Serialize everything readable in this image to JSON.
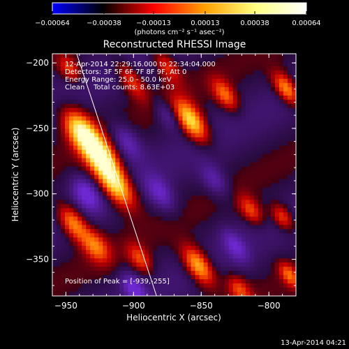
{
  "chart_data": {
    "type": "heatmap",
    "title": "Reconstructed RHESSI Image",
    "xlabel": "Heliocentric X (arcsec)",
    "ylabel": "Heliocentric Y (arcsec)",
    "xlim": [
      -960,
      -780
    ],
    "ylim": [
      -378,
      -193
    ],
    "x_ticks": [
      -950,
      -900,
      -850,
      -800
    ],
    "y_ticks": [
      -350,
      -300,
      -250,
      -200
    ],
    "colorbar": {
      "vmin": -0.00064,
      "vmax": 0.00064,
      "tick_values": [
        -0.00064,
        -0.00038,
        -0.00013,
        0.00013,
        0.00038,
        0.00064
      ],
      "tick_labels": [
        "−0.00064",
        "−0.00038",
        "−0.00013",
        "0.00013",
        "0.00038",
        "0.00064"
      ],
      "unit_label": "(photons cm⁻² s⁻¹ asec⁻²)",
      "colors": [
        "#0000ff",
        "#000000",
        "#ff0000",
        "#ffa000",
        "#ffff80",
        "#ffffff"
      ]
    },
    "annotations": [
      "12-Apr-2014 22:29:16.000 to 22:34:04.000",
      "Detectors: 3F 5F 6F 7F 8F 9F, Att 0",
      "Energy Range: 25.0 - 50.0 keV",
      "Clean    Total counts: 8.63E+03",
      "Position of Peak = [-939,-255]"
    ],
    "peak": {
      "x": -939,
      "y": -255
    },
    "limb_line": [
      [
        -942,
        -193
      ],
      [
        -883,
        -378
      ]
    ],
    "blobs": [
      {
        "x": -938,
        "y": -253,
        "amp": 1.0,
        "sa": 14,
        "sb": 7
      },
      {
        "x": -913,
        "y": -293,
        "amp": 1.0,
        "sa": 14,
        "sb": 7
      },
      {
        "x": -924,
        "y": -272,
        "amp": 0.8,
        "sa": 12,
        "sb": 7
      },
      {
        "x": -945,
        "y": -322,
        "amp": 0.72,
        "sa": 11,
        "sb": 6
      },
      {
        "x": -928,
        "y": -340,
        "amp": 0.55,
        "sa": 10,
        "sb": 6
      },
      {
        "x": -947,
        "y": -205,
        "amp": 0.5,
        "sa": 8,
        "sb": 5
      },
      {
        "x": -902,
        "y": -213,
        "amp": 0.5,
        "sa": 12,
        "sb": 5
      },
      {
        "x": -876,
        "y": -202,
        "amp": 0.45,
        "sa": 11,
        "sb": 5
      },
      {
        "x": -857,
        "y": -245,
        "amp": 0.9,
        "sa": 13,
        "sb": 6
      },
      {
        "x": -832,
        "y": -225,
        "amp": 0.55,
        "sa": 10,
        "sb": 5
      },
      {
        "x": -852,
        "y": -355,
        "amp": 0.85,
        "sa": 12,
        "sb": 6
      },
      {
        "x": -895,
        "y": -350,
        "amp": 0.45,
        "sa": 9,
        "sb": 5
      },
      {
        "x": -813,
        "y": -313,
        "amp": 0.5,
        "sa": 9,
        "sb": 5
      },
      {
        "x": -787,
        "y": -220,
        "amp": 0.75,
        "sa": 10,
        "sb": 5
      },
      {
        "x": -790,
        "y": -318,
        "amp": 0.55,
        "sa": 8,
        "sb": 5
      },
      {
        "x": -822,
        "y": -373,
        "amp": 0.45,
        "sa": 9,
        "sb": 5
      },
      {
        "x": -785,
        "y": -362,
        "amp": 0.5,
        "sa": 8,
        "sb": 4
      },
      {
        "x": -905,
        "y": -260,
        "amp": -0.45,
        "sa": 11,
        "sb": 6
      },
      {
        "x": -935,
        "y": -300,
        "amp": -0.5,
        "sa": 10,
        "sb": 6
      },
      {
        "x": -880,
        "y": -300,
        "amp": -0.45,
        "sa": 11,
        "sb": 6
      },
      {
        "x": -840,
        "y": -290,
        "amp": -0.4,
        "sa": 10,
        "sb": 6
      },
      {
        "x": -900,
        "y": -372,
        "amp": -0.5,
        "sa": 9,
        "sb": 5
      },
      {
        "x": -825,
        "y": -340,
        "amp": -0.4,
        "sa": 10,
        "sb": 5
      },
      {
        "x": -875,
        "y": -240,
        "amp": -0.35,
        "sa": 9,
        "sb": 5
      }
    ]
  },
  "footer": {
    "timestamp": "13-Apr-2014 04:21"
  }
}
